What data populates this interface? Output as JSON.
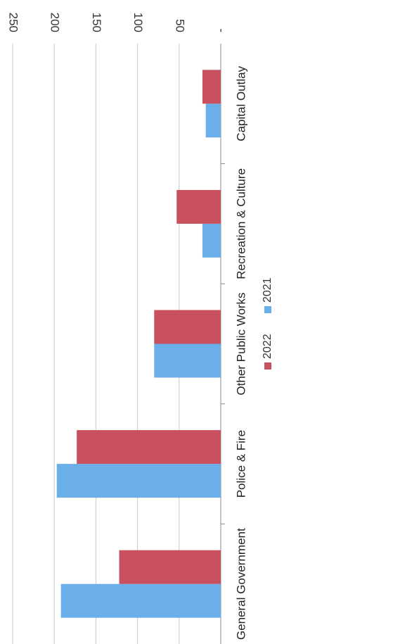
{
  "chart_data": {
    "type": "bar",
    "orientation": "horizontal",
    "rotated": 180,
    "categories": [
      "General Government",
      "Police & Fire",
      "Other Public Works",
      "Recreation & Culture",
      "Capital Outlay"
    ],
    "series": [
      {
        "name": "2021",
        "color": "#6aaeea",
        "values": [
          192,
          197,
          80,
          22,
          18
        ]
      },
      {
        "name": "2022",
        "color": "#c8505f",
        "values": [
          122,
          173,
          80,
          53,
          22
        ]
      }
    ],
    "ticks": [
      "-",
      "50",
      "100",
      "150",
      "200",
      "250"
    ],
    "xlim": [
      0,
      250
    ],
    "grid": true,
    "legend_position": "bottom"
  }
}
